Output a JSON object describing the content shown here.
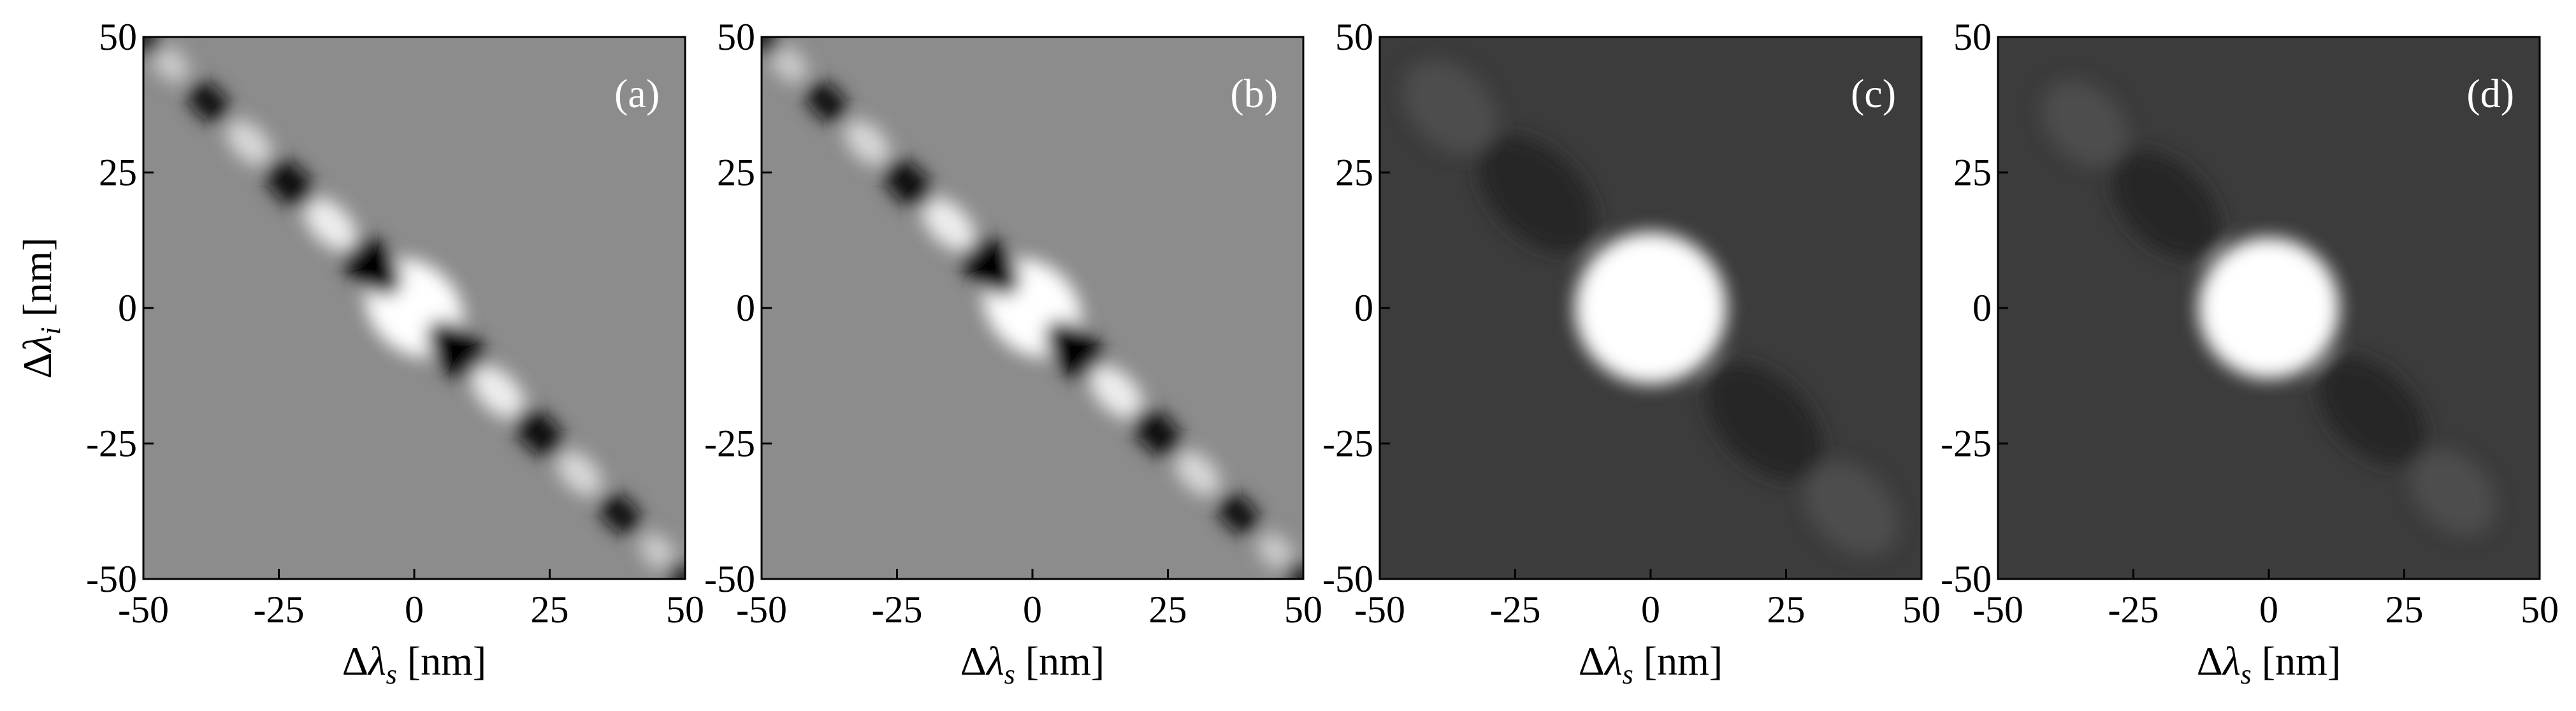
{
  "chart_data": [
    {
      "type": "heatmap",
      "panel_label": "(a)",
      "xlabel": {
        "prefix": "Δλ",
        "sub": "s",
        "unit": " [nm]"
      },
      "ylabel": {
        "prefix": "Δλ",
        "sub": "i",
        "unit": " [nm]"
      },
      "xlim": [
        -50,
        50
      ],
      "ylim": [
        -50,
        50
      ],
      "xticks": [
        -50,
        -25,
        0,
        25,
        50
      ],
      "yticks": [
        50,
        25,
        0,
        -25,
        -50
      ],
      "background": "#8c8c8c",
      "colormap": [
        "#000000",
        "#ffffff"
      ],
      "blobs": [
        {
          "x": 0,
          "y": 0,
          "rx": 10,
          "ry": 8,
          "v": 1
        },
        {
          "x": -8,
          "y": 8,
          "rx": 7,
          "ry": 4,
          "v": -1
        },
        {
          "x": 8,
          "y": -8,
          "rx": 7,
          "ry": 4,
          "v": -1
        },
        {
          "x": -15.5,
          "y": 15.5,
          "rx": 6,
          "ry": 3.5,
          "v": 0.85
        },
        {
          "x": 15.5,
          "y": -15.5,
          "rx": 6,
          "ry": 3.5,
          "v": 0.85
        },
        {
          "x": -23,
          "y": 23,
          "rx": 5.5,
          "ry": 3.3,
          "v": -0.95
        },
        {
          "x": 23,
          "y": -23,
          "rx": 5.5,
          "ry": 3.3,
          "v": -0.95
        },
        {
          "x": -30.5,
          "y": 30.5,
          "rx": 5,
          "ry": 3.1,
          "v": 0.65
        },
        {
          "x": 30.5,
          "y": -30.5,
          "rx": 5,
          "ry": 3.1,
          "v": 0.65
        },
        {
          "x": -38,
          "y": 38,
          "rx": 4.5,
          "ry": 2.9,
          "v": -0.9
        },
        {
          "x": 38,
          "y": -38,
          "rx": 4.5,
          "ry": 2.9,
          "v": -0.9
        },
        {
          "x": -45,
          "y": 45,
          "rx": 4,
          "ry": 2.7,
          "v": 0.55
        },
        {
          "x": 45,
          "y": -45,
          "rx": 4,
          "ry": 2.7,
          "v": 0.55
        },
        {
          "x": -50,
          "y": 50,
          "rx": 4,
          "ry": 2.7,
          "v": -0.8
        },
        {
          "x": 50,
          "y": -50,
          "rx": 4,
          "ry": 2.7,
          "v": -0.8
        }
      ]
    },
    {
      "type": "heatmap",
      "panel_label": "(b)",
      "xlabel": {
        "prefix": "Δλ",
        "sub": "s",
        "unit": " [nm]"
      },
      "ylabel": {
        "prefix": "",
        "sub": "",
        "unit": ""
      },
      "xlim": [
        -50,
        50
      ],
      "ylim": [
        -50,
        50
      ],
      "xticks": [
        -50,
        -25,
        0,
        25,
        50
      ],
      "yticks": [
        50,
        25,
        0,
        -25,
        -50
      ],
      "background": "#8c8c8c",
      "colormap": [
        "#000000",
        "#ffffff"
      ],
      "blobs": [
        {
          "x": 0,
          "y": 0,
          "rx": 10,
          "ry": 8,
          "v": 1
        },
        {
          "x": -8,
          "y": 8,
          "rx": 7,
          "ry": 4,
          "v": -1
        },
        {
          "x": 8,
          "y": -8,
          "rx": 7,
          "ry": 4,
          "v": -1
        },
        {
          "x": -15.5,
          "y": 15.5,
          "rx": 6,
          "ry": 3.5,
          "v": 0.85
        },
        {
          "x": 15.5,
          "y": -15.5,
          "rx": 6,
          "ry": 3.5,
          "v": 0.85
        },
        {
          "x": -23,
          "y": 23,
          "rx": 5.5,
          "ry": 3.3,
          "v": -0.95
        },
        {
          "x": 23,
          "y": -23,
          "rx": 5.5,
          "ry": 3.3,
          "v": -0.95
        },
        {
          "x": -30.5,
          "y": 30.5,
          "rx": 5,
          "ry": 3.1,
          "v": 0.65
        },
        {
          "x": 30.5,
          "y": -30.5,
          "rx": 5,
          "ry": 3.1,
          "v": 0.65
        },
        {
          "x": -38,
          "y": 38,
          "rx": 4.5,
          "ry": 2.9,
          "v": -0.9
        },
        {
          "x": 38,
          "y": -38,
          "rx": 4.5,
          "ry": 2.9,
          "v": -0.9
        },
        {
          "x": -45,
          "y": 45,
          "rx": 4,
          "ry": 2.7,
          "v": 0.55
        },
        {
          "x": 45,
          "y": -45,
          "rx": 4,
          "ry": 2.7,
          "v": 0.55
        },
        {
          "x": -50,
          "y": 50,
          "rx": 4,
          "ry": 2.7,
          "v": -0.8
        },
        {
          "x": 50,
          "y": -50,
          "rx": 4,
          "ry": 2.7,
          "v": -0.8
        }
      ]
    },
    {
      "type": "heatmap",
      "panel_label": "(c)",
      "xlabel": {
        "prefix": "Δλ",
        "sub": "s",
        "unit": " [nm]"
      },
      "ylabel": {
        "prefix": "",
        "sub": "",
        "unit": ""
      },
      "xlim": [
        -50,
        50
      ],
      "ylim": [
        -50,
        50
      ],
      "xticks": [
        -50,
        -25,
        0,
        25,
        50
      ],
      "yticks": [
        50,
        25,
        0,
        -25,
        -50
      ],
      "background": "#3c3c3c",
      "colormap": [
        "#000000",
        "#ffffff"
      ],
      "blobs": [
        {
          "x": 0,
          "y": 0,
          "rx": 14,
          "ry": 14,
          "v": 1
        },
        {
          "x": -21,
          "y": 21,
          "rx": 13,
          "ry": 8,
          "v": -0.35
        },
        {
          "x": 21,
          "y": -21,
          "rx": 13,
          "ry": 8,
          "v": -0.35
        },
        {
          "x": -37,
          "y": 37,
          "rx": 10,
          "ry": 7,
          "v": 0.09
        },
        {
          "x": 37,
          "y": -37,
          "rx": 10,
          "ry": 7,
          "v": 0.09
        }
      ]
    },
    {
      "type": "heatmap",
      "panel_label": "(d)",
      "xlabel": {
        "prefix": "Δλ",
        "sub": "s",
        "unit": " [nm]"
      },
      "ylabel": {
        "prefix": "",
        "sub": "",
        "unit": ""
      },
      "xlim": [
        -50,
        50
      ],
      "ylim": [
        -50,
        50
      ],
      "xticks": [
        -50,
        -25,
        0,
        25,
        50
      ],
      "yticks": [
        50,
        25,
        0,
        -25,
        -50
      ],
      "background": "#3c3c3c",
      "colormap": [
        "#000000",
        "#ffffff"
      ],
      "blobs": [
        {
          "x": 0,
          "y": 0,
          "rx": 13,
          "ry": 13,
          "v": 1
        },
        {
          "x": -19,
          "y": 19,
          "rx": 12,
          "ry": 7.5,
          "v": -0.35
        },
        {
          "x": 19,
          "y": -19,
          "rx": 12,
          "ry": 7.5,
          "v": -0.35
        },
        {
          "x": -34,
          "y": 34,
          "rx": 9,
          "ry": 6.5,
          "v": 0.09
        },
        {
          "x": 34,
          "y": -34,
          "rx": 9,
          "ry": 6.5,
          "v": 0.09
        }
      ]
    }
  ]
}
